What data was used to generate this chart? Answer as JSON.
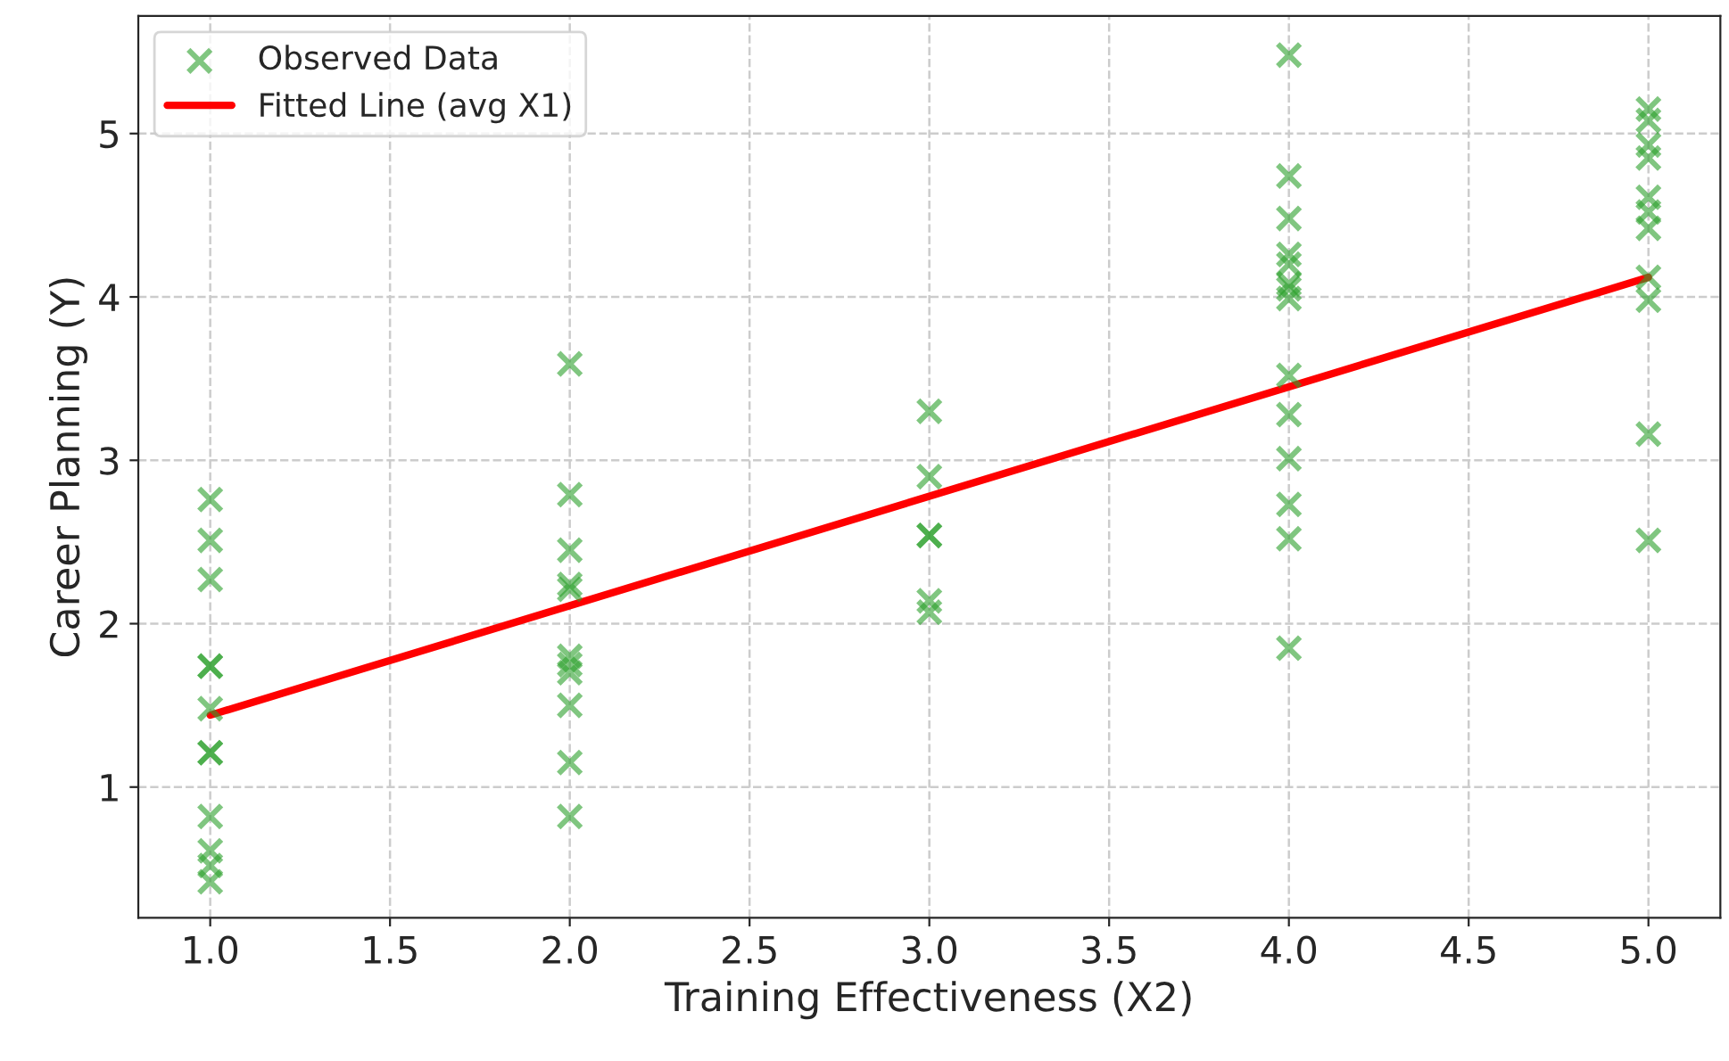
{
  "chart_data": {
    "type": "scatter",
    "xlabel": "Training Effectiveness (X2)",
    "ylabel": "Career Planning (Y)",
    "series": [
      {
        "name": "Observed Data",
        "color": "#2ca02c",
        "marker": "cross",
        "x": [
          1,
          1,
          1,
          1,
          1,
          1,
          1,
          1,
          1,
          1,
          1,
          1,
          2,
          2,
          2,
          2,
          2,
          2,
          2,
          2,
          2,
          2,
          2,
          3,
          3,
          3,
          3,
          3,
          3,
          4,
          4,
          4,
          4,
          4,
          4,
          4,
          4,
          4,
          4,
          4,
          4,
          4,
          4,
          5,
          5,
          5,
          5,
          5,
          5,
          5,
          5,
          5,
          5,
          5
        ],
        "values": [
          2.76,
          2.51,
          2.27,
          1.74,
          1.74,
          1.48,
          1.21,
          1.21,
          0.82,
          0.61,
          0.52,
          0.42,
          3.59,
          2.79,
          2.45,
          2.24,
          2.21,
          1.8,
          1.75,
          1.7,
          1.5,
          1.15,
          0.82,
          3.3,
          2.9,
          2.54,
          2.54,
          2.14,
          2.07,
          5.48,
          4.74,
          4.48,
          4.26,
          4.2,
          4.08,
          4.05,
          3.99,
          3.52,
          3.28,
          3.01,
          2.73,
          2.52,
          1.85,
          5.15,
          5.08,
          4.93,
          4.85,
          4.61,
          4.52,
          4.42,
          4.12,
          3.98,
          3.16,
          2.51
        ]
      },
      {
        "name": "Fitted Line (avg X1)",
        "type": "line",
        "color": "#ff0000",
        "x": [
          1,
          5
        ],
        "values": [
          1.44,
          4.12
        ]
      }
    ],
    "xlim": [
      0.8,
      5.2
    ],
    "ylim": [
      0.2,
      5.72
    ],
    "xticks": [
      {
        "value": 1,
        "label": "1.0"
      },
      {
        "value": 1.5,
        "label": "1.5"
      },
      {
        "value": 2,
        "label": "2.0"
      },
      {
        "value": 2.5,
        "label": "2.5"
      },
      {
        "value": 3,
        "label": "3.0"
      },
      {
        "value": 3.5,
        "label": "3.5"
      },
      {
        "value": 4,
        "label": "4.0"
      },
      {
        "value": 4.5,
        "label": "4.5"
      },
      {
        "value": 5,
        "label": "5.0"
      }
    ],
    "yticks": [
      1,
      2,
      3,
      4,
      5
    ],
    "grid": true,
    "legend": "top left"
  }
}
